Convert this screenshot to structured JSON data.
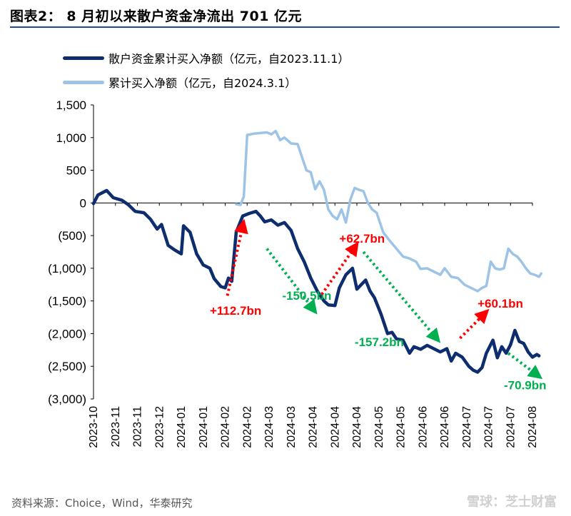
{
  "header": {
    "title": "图表2： 8 月初以来散户资金净流出 701 亿元"
  },
  "legend": {
    "series_1": "散户资金累计买入净额（亿元，自2023.11.1）",
    "series_2": "累计买入净额（亿元，自2024.3.1）"
  },
  "footer": {
    "source": "资料来源：Choice，Wind，华泰研究",
    "watermark": "雪球：芝士财富"
  },
  "colors": {
    "series_1": "#0d2d6e",
    "series_2": "#9dc3e6",
    "up_arrow": "#ff0000",
    "down_arrow": "#00b050",
    "axis_text": "#000000"
  },
  "chart_data": {
    "type": "line",
    "ylim": [
      -3000,
      1500
    ],
    "yticks": [
      1500,
      1000,
      500,
      0,
      -500,
      -1000,
      -1500,
      -2000,
      -2500,
      -3000
    ],
    "ytick_labels": [
      "1,500",
      "1,000",
      "500",
      "0",
      "(500)",
      "(1,000)",
      "(1,500)",
      "(2,000)",
      "(2,500)",
      "(3,000)"
    ],
    "xtick_labels": [
      "2023-10",
      "2023-11",
      "2023-11",
      "2023-12",
      "2024-01",
      "2024-01",
      "2024-02",
      "2024-02",
      "2024-03",
      "2024-03",
      "2024-04",
      "2024-04",
      "2024-04",
      "2024-05",
      "2024-05",
      "2024-06",
      "2024-06",
      "2024-07",
      "2024-07",
      "2024-07",
      "2024-08"
    ],
    "series": [
      {
        "name": "散户资金累计买入净额（亿元，自2023.11.1）",
        "points": [
          [
            0.0,
            -10
          ],
          [
            0.2,
            120
          ],
          [
            0.6,
            190
          ],
          [
            0.9,
            80
          ],
          [
            1.3,
            40
          ],
          [
            1.6,
            -30
          ],
          [
            1.9,
            -130
          ],
          [
            2.3,
            -150
          ],
          [
            2.6,
            -250
          ],
          [
            2.9,
            -400
          ],
          [
            3.1,
            -330
          ],
          [
            3.4,
            -650
          ],
          [
            3.7,
            -720
          ],
          [
            4.0,
            -780
          ],
          [
            4.1,
            -350
          ],
          [
            4.4,
            -450
          ],
          [
            4.7,
            -780
          ],
          [
            5.0,
            -950
          ],
          [
            5.3,
            -1000
          ],
          [
            5.5,
            -1160
          ],
          [
            5.8,
            -1280
          ],
          [
            6.0,
            -1300
          ],
          [
            6.15,
            -1150
          ],
          [
            6.3,
            -1200
          ],
          [
            6.5,
            -450
          ],
          [
            6.8,
            -200
          ],
          [
            7.1,
            -160
          ],
          [
            7.4,
            -130
          ],
          [
            7.6,
            -200
          ],
          [
            7.8,
            -290
          ],
          [
            8.1,
            -260
          ],
          [
            8.4,
            -340
          ],
          [
            8.7,
            -300
          ],
          [
            9.0,
            -420
          ],
          [
            9.3,
            -700
          ],
          [
            9.6,
            -900
          ],
          [
            9.9,
            -1150
          ],
          [
            10.2,
            -1350
          ],
          [
            10.5,
            -1500
          ],
          [
            10.7,
            -1560
          ],
          [
            11.0,
            -1570
          ],
          [
            11.2,
            -1300
          ],
          [
            11.5,
            -1100
          ],
          [
            11.8,
            -1000
          ],
          [
            12.0,
            -1320
          ],
          [
            12.2,
            -1250
          ],
          [
            12.4,
            -1180
          ],
          [
            12.6,
            -1350
          ],
          [
            12.8,
            -1450
          ],
          [
            13.1,
            -1700
          ],
          [
            13.4,
            -2000
          ],
          [
            13.6,
            -1980
          ],
          [
            13.8,
            -2080
          ],
          [
            14.1,
            -2100
          ],
          [
            14.4,
            -2300
          ],
          [
            14.6,
            -2200
          ],
          [
            14.9,
            -2240
          ],
          [
            15.2,
            -2180
          ],
          [
            15.5,
            -2230
          ],
          [
            15.8,
            -2280
          ],
          [
            16.1,
            -2230
          ],
          [
            16.3,
            -2420
          ],
          [
            16.5,
            -2300
          ],
          [
            16.8,
            -2360
          ],
          [
            17.1,
            -2500
          ],
          [
            17.3,
            -2560
          ],
          [
            17.5,
            -2590
          ],
          [
            17.7,
            -2520
          ],
          [
            17.9,
            -2300
          ],
          [
            18.2,
            -2100
          ],
          [
            18.4,
            -2370
          ],
          [
            18.6,
            -2200
          ],
          [
            18.8,
            -2300
          ],
          [
            19.0,
            -2170
          ],
          [
            19.2,
            -1950
          ],
          [
            19.4,
            -2120
          ],
          [
            19.6,
            -2150
          ],
          [
            19.8,
            -2280
          ],
          [
            20.0,
            -2360
          ],
          [
            20.2,
            -2320
          ],
          [
            20.3,
            -2340
          ]
        ]
      },
      {
        "name": "累计买入净额（亿元，自2024.3.1）",
        "points": [
          [
            6.5,
            -20
          ],
          [
            6.7,
            -30
          ],
          [
            6.85,
            100
          ],
          [
            7.0,
            1040
          ],
          [
            7.3,
            1060
          ],
          [
            7.6,
            1070
          ],
          [
            7.9,
            1080
          ],
          [
            8.1,
            1050
          ],
          [
            8.3,
            1100
          ],
          [
            8.5,
            960
          ],
          [
            8.7,
            1000
          ],
          [
            9.0,
            910
          ],
          [
            9.3,
            900
          ],
          [
            9.5,
            700
          ],
          [
            9.7,
            500
          ],
          [
            9.9,
            470
          ],
          [
            10.1,
            210
          ],
          [
            10.3,
            330
          ],
          [
            10.5,
            200
          ],
          [
            10.7,
            -100
          ],
          [
            10.9,
            -200
          ],
          [
            11.1,
            -250
          ],
          [
            11.3,
            -100
          ],
          [
            11.5,
            -300
          ],
          [
            11.7,
            50
          ],
          [
            11.9,
            230
          ],
          [
            12.1,
            200
          ],
          [
            12.3,
            180
          ],
          [
            12.5,
            0
          ],
          [
            12.7,
            -100
          ],
          [
            12.9,
            -150
          ],
          [
            13.2,
            -450
          ],
          [
            13.5,
            -580
          ],
          [
            13.8,
            -700
          ],
          [
            14.1,
            -820
          ],
          [
            14.4,
            -850
          ],
          [
            14.7,
            -900
          ],
          [
            14.9,
            -1010
          ],
          [
            15.2,
            -1000
          ],
          [
            15.5,
            -1050
          ],
          [
            15.8,
            -1100
          ],
          [
            16.0,
            -1000
          ],
          [
            16.3,
            -1130
          ],
          [
            16.6,
            -1150
          ],
          [
            16.9,
            -1250
          ],
          [
            17.2,
            -1300
          ],
          [
            17.5,
            -1350
          ],
          [
            17.7,
            -1300
          ],
          [
            17.9,
            -1270
          ],
          [
            18.1,
            -900
          ],
          [
            18.3,
            -1000
          ],
          [
            18.5,
            -1020
          ],
          [
            18.7,
            -1000
          ],
          [
            18.9,
            -700
          ],
          [
            19.1,
            -780
          ],
          [
            19.3,
            -820
          ],
          [
            19.5,
            -900
          ],
          [
            19.7,
            -1000
          ],
          [
            19.9,
            -1080
          ],
          [
            20.1,
            -1100
          ],
          [
            20.3,
            -1130
          ],
          [
            20.4,
            -1080
          ]
        ]
      }
    ],
    "annotations": [
      {
        "text": "+112.7bn",
        "color": "red",
        "arrow_from": [
          6.1,
          -1420
        ],
        "arrow_to": [
          6.8,
          -350
        ],
        "label_at": [
          5.3,
          -1710
        ]
      },
      {
        "text": "-150.5bn",
        "color": "green",
        "arrow_from": [
          7.9,
          -700
        ],
        "arrow_to": [
          10.0,
          -1620
        ],
        "label_at": [
          8.6,
          -1480
        ]
      },
      {
        "text": "+62.7bn",
        "color": "red",
        "arrow_from": [
          10.4,
          -1400
        ],
        "arrow_to": [
          11.9,
          -680
        ],
        "label_at": [
          11.2,
          -610
        ]
      },
      {
        "text": "-157.2bn",
        "color": "green",
        "arrow_from": [
          12.3,
          -750
        ],
        "arrow_to": [
          15.6,
          -2060
        ],
        "label_at": [
          11.9,
          -2190
        ]
      },
      {
        "text": "+60.1bn",
        "color": "red",
        "arrow_from": [
          16.7,
          -2070
        ],
        "arrow_to": [
          17.8,
          -1700
        ],
        "label_at": [
          17.5,
          -1600
        ]
      },
      {
        "text": "-70.9bn",
        "color": "green",
        "arrow_from": [
          18.9,
          -2300
        ],
        "arrow_to": [
          20.2,
          -2630
        ],
        "label_at": [
          18.7,
          -2850
        ]
      }
    ]
  }
}
